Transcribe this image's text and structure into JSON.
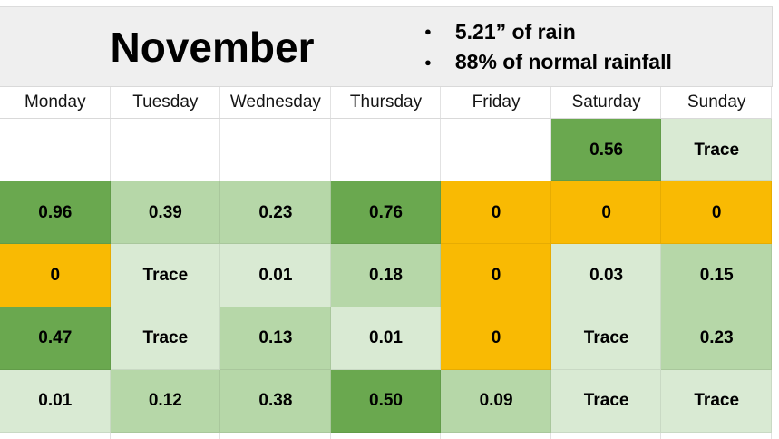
{
  "header": {
    "title": "November",
    "bullet_glyph": "●",
    "bullets": [
      "5.21” of rain",
      "88% of normal rainfall"
    ]
  },
  "calendar": {
    "day_headers": [
      "Monday",
      "Tuesday",
      "Wednesday",
      "Thursday",
      "Friday",
      "Saturday",
      "Sunday"
    ],
    "weeks": [
      [
        {
          "value": "",
          "level": "empty"
        },
        {
          "value": "",
          "level": "empty"
        },
        {
          "value": "",
          "level": "empty"
        },
        {
          "value": "",
          "level": "empty"
        },
        {
          "value": "",
          "level": "empty"
        },
        {
          "value": "0.56",
          "level": "high"
        },
        {
          "value": "Trace",
          "level": "trace"
        }
      ],
      [
        {
          "value": "0.96",
          "level": "high"
        },
        {
          "value": "0.39",
          "level": "low"
        },
        {
          "value": "0.23",
          "level": "low"
        },
        {
          "value": "0.76",
          "level": "high"
        },
        {
          "value": "0",
          "level": "zero"
        },
        {
          "value": "0",
          "level": "zero"
        },
        {
          "value": "0",
          "level": "zero"
        }
      ],
      [
        {
          "value": "0",
          "level": "zero"
        },
        {
          "value": "Trace",
          "level": "trace"
        },
        {
          "value": "0.01",
          "level": "trace"
        },
        {
          "value": "0.18",
          "level": "low"
        },
        {
          "value": "0",
          "level": "zero"
        },
        {
          "value": "0.03",
          "level": "trace"
        },
        {
          "value": "0.15",
          "level": "low"
        }
      ],
      [
        {
          "value": "0.47",
          "level": "high"
        },
        {
          "value": "Trace",
          "level": "trace"
        },
        {
          "value": "0.13",
          "level": "low"
        },
        {
          "value": "0.01",
          "level": "trace"
        },
        {
          "value": "0",
          "level": "zero"
        },
        {
          "value": "Trace",
          "level": "trace"
        },
        {
          "value": "0.23",
          "level": "low"
        }
      ],
      [
        {
          "value": "0.01",
          "level": "trace"
        },
        {
          "value": "0.12",
          "level": "low"
        },
        {
          "value": "0.38",
          "level": "low"
        },
        {
          "value": "0.50",
          "level": "high"
        },
        {
          "value": "0.09",
          "level": "low"
        },
        {
          "value": "Trace",
          "level": "trace"
        },
        {
          "value": "Trace",
          "level": "trace"
        }
      ]
    ]
  },
  "colors": {
    "empty": "#ffffff",
    "zero": "#f9ba03",
    "trace": "#d9ead3",
    "low": "#b6d7a8",
    "high": "#6aa84f",
    "header_band": "#efefef"
  }
}
